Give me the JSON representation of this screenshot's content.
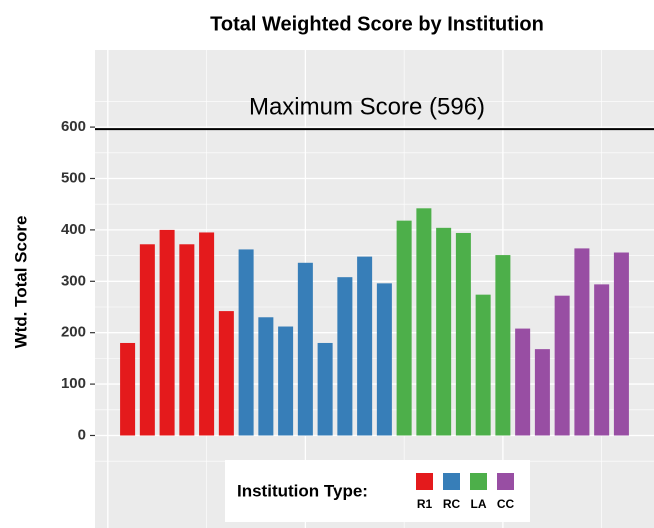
{
  "chart_data": {
    "type": "bar",
    "title": "Total Weighted Score by Institution",
    "y_label": "Wtd. Total Score",
    "legend_title": "Institution Type:",
    "legend_position": "bottom",
    "grid": true,
    "xlim": [
      -0.65,
      27.65
    ],
    "xticks": [
      0,
      10,
      20
    ],
    "ylim": [
      -180,
      750
    ],
    "yticks": [
      0,
      100,
      200,
      300,
      400,
      500,
      600
    ],
    "hline": {
      "value": 596,
      "label": "Maximum Score (596)"
    },
    "series": [
      {
        "name": "R1",
        "color": "#E41A1C",
        "x": [
          1,
          2,
          3,
          4,
          5,
          6
        ],
        "values": [
          180,
          372,
          400,
          372,
          395,
          242
        ]
      },
      {
        "name": "RC",
        "color": "#377EB8",
        "x": [
          7,
          8,
          9,
          10,
          11,
          12,
          13,
          14
        ],
        "values": [
          362,
          230,
          212,
          336,
          180,
          308,
          348,
          296
        ]
      },
      {
        "name": "LA",
        "color": "#4DAF4A",
        "x": [
          15,
          16,
          17,
          18,
          19,
          20
        ],
        "values": [
          418,
          442,
          404,
          394,
          274,
          351
        ]
      },
      {
        "name": "CC",
        "color": "#984EA3",
        "x": [
          21,
          22,
          23,
          24,
          25,
          26
        ],
        "values": [
          208,
          168,
          272,
          364,
          294,
          356
        ]
      }
    ]
  }
}
